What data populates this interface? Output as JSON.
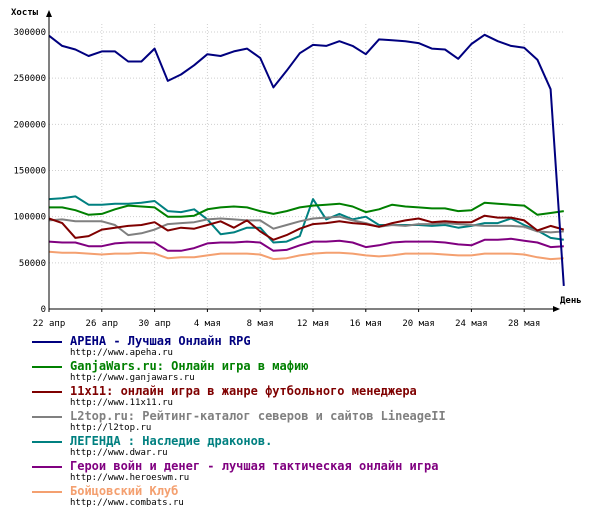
{
  "chart_data": {
    "type": "line",
    "ylabel": "Хосты",
    "xlabel": "День",
    "ylim": [
      0,
      310000
    ],
    "yticks": [
      "0",
      "50000",
      "100000",
      "150000",
      "200000",
      "250000",
      "300000"
    ],
    "ytick_values": [
      0,
      50000,
      100000,
      150000,
      200000,
      250000,
      300000
    ],
    "xtick_labels": [
      "22 апр",
      "26 апр",
      "30 апр",
      "4 мая",
      "8 мая",
      "12 мая",
      "16 мая",
      "20 мая",
      "24 мая",
      "28 мая"
    ],
    "xtick_index": [
      0,
      4,
      8,
      12,
      16,
      20,
      24,
      28,
      32,
      36
    ],
    "grid": true,
    "series": [
      {
        "name": "АРЕНА - Лучшая Онлайн RPG",
        "url": "http://www.apeha.ru",
        "color": "#00007f",
        "values": [
          296000,
          285000,
          281000,
          274000,
          279000,
          279000,
          268000,
          268000,
          282000,
          247000,
          254000,
          264000,
          276000,
          274000,
          279000,
          282000,
          272000,
          240000,
          258000,
          277000,
          286000,
          285000,
          290000,
          285000,
          276000,
          292000,
          291000,
          290000,
          288000,
          282000,
          281000,
          271000,
          287000,
          297000,
          290000,
          285000,
          283000,
          270000,
          238000,
          25000
        ]
      },
      {
        "name": "GanjaWars.ru: Онлайн игра в мафию",
        "url": "http://www.ganjawars.ru",
        "color": "#008000",
        "values": [
          110000,
          110000,
          107000,
          102000,
          103000,
          108000,
          112000,
          111000,
          110000,
          100000,
          100000,
          101000,
          108000,
          110000,
          111000,
          110000,
          106000,
          103000,
          106000,
          110000,
          112000,
          113000,
          114000,
          111000,
          105000,
          108000,
          113000,
          111000,
          110000,
          109000,
          109000,
          106000,
          107000,
          115000,
          114000,
          113000,
          112000,
          102000,
          104000,
          106000
        ]
      },
      {
        "name": "11x11: онлайн игра в жанре футбольного менеджера",
        "url": "http://www.11x11.ru",
        "color": "#7f0000",
        "values": [
          98000,
          93000,
          77000,
          79000,
          86000,
          88000,
          90000,
          91000,
          94000,
          85000,
          88000,
          87000,
          91000,
          95000,
          88000,
          96000,
          84000,
          75000,
          80000,
          87000,
          92000,
          93000,
          95000,
          93000,
          92000,
          89000,
          93000,
          96000,
          98000,
          94000,
          95000,
          94000,
          94000,
          101000,
          99000,
          99000,
          96000,
          85000,
          90000,
          86000
        ]
      },
      {
        "name": "L2top.ru: Рейтинг-каталог северов и сайтов LineageII",
        "url": "http://l2top.ru",
        "color": "#808080",
        "values": [
          96000,
          97000,
          95000,
          95000,
          95000,
          91000,
          80000,
          82000,
          86000,
          92000,
          93000,
          94000,
          97000,
          98000,
          97000,
          96000,
          96000,
          87000,
          91000,
          95000,
          98000,
          99000,
          100000,
          96000,
          93000,
          89000,
          91000,
          90000,
          92000,
          92000,
          93000,
          92000,
          91000,
          90000,
          90000,
          90000,
          89000,
          84000,
          83000,
          84000
        ]
      },
      {
        "name": "ЛЕГЕНДА : Наследие драконов.",
        "url": "http://www.dwar.ru",
        "color": "#008080",
        "values": [
          119000,
          120000,
          122000,
          113000,
          113000,
          114000,
          114000,
          115000,
          117000,
          106000,
          105000,
          108000,
          97000,
          81000,
          83000,
          88000,
          88000,
          72000,
          73000,
          79000,
          119000,
          97000,
          103000,
          97000,
          100000,
          91000,
          91000,
          91000,
          91000,
          90000,
          91000,
          88000,
          90000,
          93000,
          93000,
          98000,
          91000,
          85000,
          77000,
          75000
        ]
      },
      {
        "name": "Герои войн и денег - лучшая тактическая онлайн игра",
        "url": "http://www.heroeswm.ru",
        "color": "#800080",
        "values": [
          73000,
          72000,
          72000,
          68000,
          68000,
          71000,
          72000,
          72000,
          72000,
          63000,
          63000,
          66000,
          71000,
          72000,
          72000,
          73000,
          72000,
          63000,
          64000,
          69000,
          73000,
          73000,
          74000,
          72000,
          67000,
          69000,
          72000,
          73000,
          73000,
          73000,
          72000,
          70000,
          69000,
          75000,
          75000,
          76000,
          74000,
          72000,
          67000,
          68000
        ]
      },
      {
        "name": "Бойцовский Клуб",
        "url": "http://www.combats.ru",
        "color": "#f4a070",
        "values": [
          62000,
          61000,
          61000,
          60000,
          59000,
          60000,
          60000,
          61000,
          60000,
          55000,
          56000,
          56000,
          58000,
          60000,
          60000,
          60000,
          59000,
          54000,
          55000,
          58000,
          60000,
          61000,
          61000,
          60000,
          58000,
          57000,
          58000,
          60000,
          60000,
          60000,
          59000,
          58000,
          58000,
          60000,
          60000,
          60000,
          59000,
          56000,
          54000,
          55000
        ]
      }
    ]
  }
}
